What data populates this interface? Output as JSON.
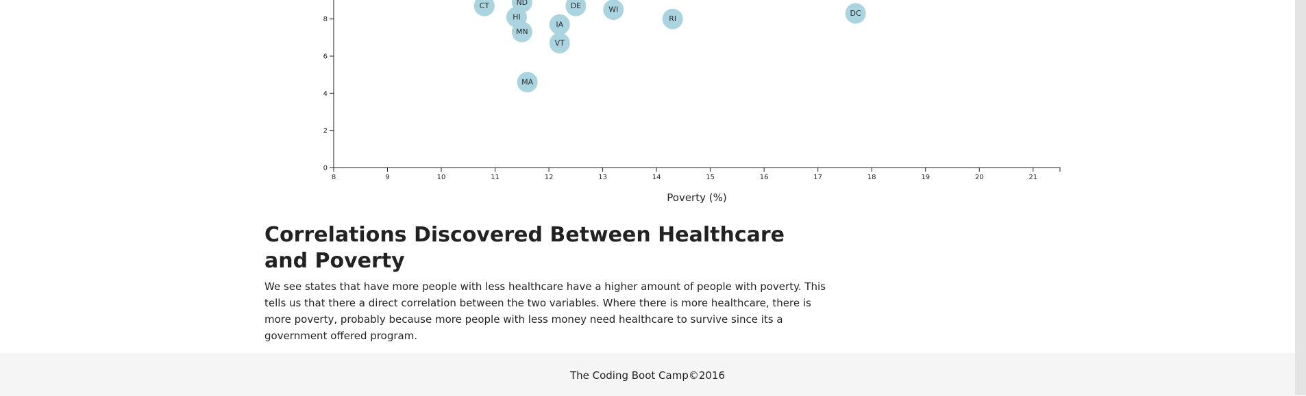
{
  "chart_data": {
    "type": "scatter",
    "xlabel": "Poverty (%)",
    "xlim": [
      8,
      21.5
    ],
    "ylim": [
      0,
      8.8
    ],
    "x_ticks": [
      8,
      9,
      10,
      11,
      12,
      13,
      14,
      15,
      16,
      17,
      18,
      19,
      20,
      21
    ],
    "y_ticks": [
      0,
      2,
      4,
      6,
      8
    ],
    "point_color": "#a9d4e0",
    "points": [
      {
        "label": "CT",
        "x": 10.8,
        "y": 8.7
      },
      {
        "label": "ND",
        "x": 11.5,
        "y": 8.9
      },
      {
        "label": "DE",
        "x": 12.5,
        "y": 8.7
      },
      {
        "label": "WI",
        "x": 13.2,
        "y": 8.5
      },
      {
        "label": "HI",
        "x": 11.4,
        "y": 8.1
      },
      {
        "label": "IA",
        "x": 12.2,
        "y": 7.7
      },
      {
        "label": "RI",
        "x": 14.3,
        "y": 8.0
      },
      {
        "label": "DC",
        "x": 17.7,
        "y": 8.3
      },
      {
        "label": "MN",
        "x": 11.5,
        "y": 7.3
      },
      {
        "label": "VT",
        "x": 12.2,
        "y": 6.7
      },
      {
        "label": "MA",
        "x": 11.6,
        "y": 4.6
      }
    ]
  },
  "article": {
    "heading": "Correlations Discovered Between Healthcare and Poverty",
    "body": "We see states that have more people with less healthcare have a higher amount of people with poverty. This tells us that there a direct correlation between the two variables. Where there is more healthcare, there is more poverty, probably because more people with less money need healthcare to survive since its a government offered program."
  },
  "footer": {
    "text": "The Coding Boot Camp©2016"
  }
}
